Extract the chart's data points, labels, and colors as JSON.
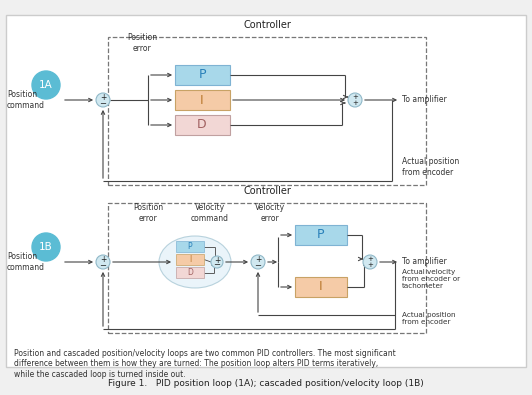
{
  "bg_color": "#f0f0f0",
  "panel_bg": "#ffffff",
  "border_color": "#bbbbbb",
  "title": "Figure 1.   PID position loop (1A); cascaded position/velocity loop (1B)",
  "caption": "Position and cascaded position/velocity loops are two common PID controllers. The most significant\ndifference between them is how they are turned: The position loop alters PID terms iteratively,\nwhile the cascaded loop is turned inside out.",
  "controller_label": "Controller",
  "box_P_color": "#a8d8ea",
  "box_I_color": "#f5cba7",
  "box_D_color": "#f2d7d5",
  "sum_fill": "#d0e8f0",
  "sum_edge": "#90b8c8",
  "badge_color": "#5bbcd4",
  "line_color": "#444444",
  "dashed_color": "#777777",
  "text_color": "#222222",
  "label_color": "#333333",
  "arrow_color": "#444444"
}
